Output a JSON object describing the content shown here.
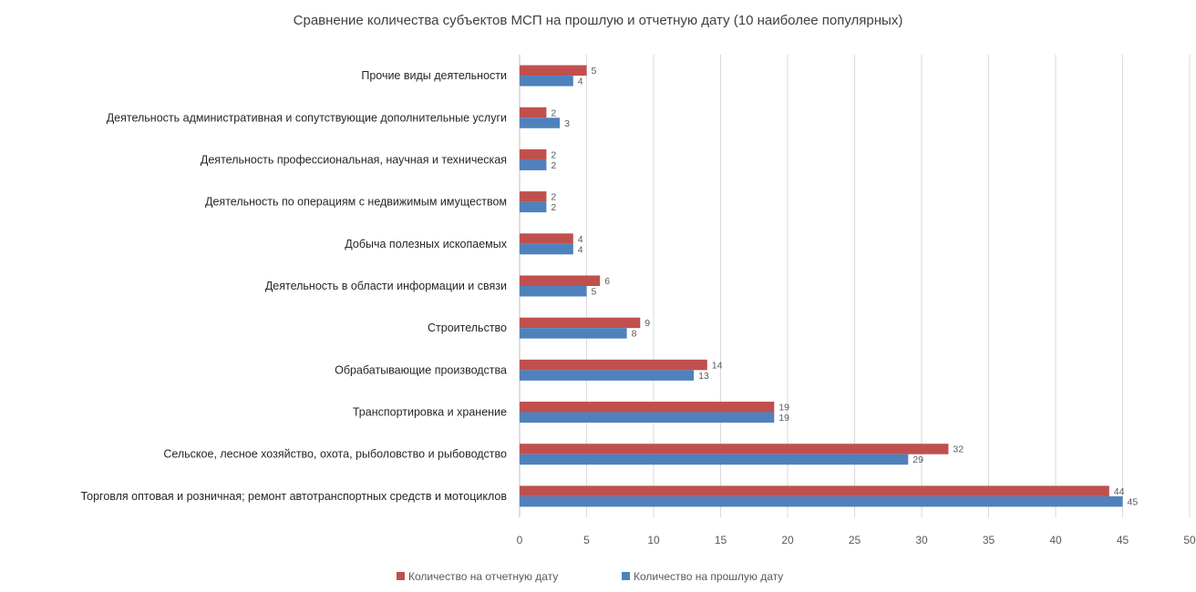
{
  "chart_data": {
    "type": "bar",
    "orientation": "horizontal",
    "title": "Сравнение количества  субъектов МСП на прошлую и отчетную дату (10 наиболее популярных)",
    "categories": [
      "Прочие виды деятельности",
      "Деятельность административная  и сопутствующие  дополнительные услуги",
      "Деятельность профессиональная, научная и техническая",
      "Деятельность по операциям с недвижимым имуществом",
      "Добыча полезных ископаемых",
      "Деятельность в области информации  и связи",
      "Строительство",
      "Обрабатывающие  производства",
      "Транспортировка и хранение",
      "Сельское, лесное хозяйство, охота, рыболовство и рыбоводство",
      "Торговля оптовая и розничная;  ремонт автотранспортных  средств и мотоциклов"
    ],
    "series": [
      {
        "name": "Количество на отчетную дату",
        "color": "#c0504d",
        "values": [
          5,
          2,
          2,
          2,
          4,
          6,
          9,
          14,
          19,
          32,
          44
        ]
      },
      {
        "name": "Количество на прошлую дату",
        "color": "#4f81bd",
        "values": [
          4,
          3,
          2,
          2,
          4,
          5,
          8,
          13,
          19,
          29,
          45
        ]
      }
    ],
    "xlim": [
      0,
      50
    ],
    "xticks": [
      0,
      5,
      10,
      15,
      20,
      25,
      30,
      35,
      40,
      45,
      50
    ],
    "xlabel": "",
    "ylabel": "",
    "grid": true,
    "legend_position": "bottom"
  }
}
